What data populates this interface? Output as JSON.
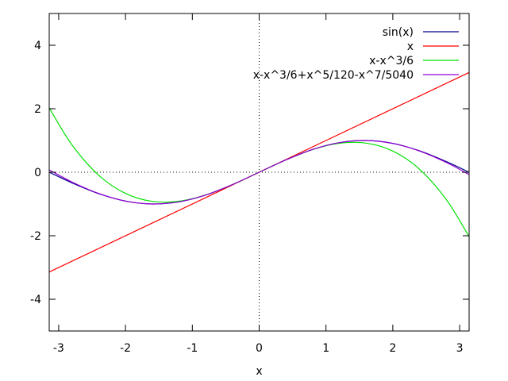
{
  "chart_data": {
    "type": "line",
    "title": "",
    "xlabel": "x",
    "ylabel": "",
    "xlim": [
      -3.14159,
      3.14159
    ],
    "ylim": [
      -5,
      5
    ],
    "xticks": [
      -3,
      -2,
      -1,
      0,
      1,
      2,
      3
    ],
    "yticks": [
      -4,
      -2,
      0,
      2,
      4
    ],
    "xtick_labels": [
      "-3",
      "-2",
      "-1",
      "0",
      "1",
      "2",
      "3"
    ],
    "ytick_labels": [
      "-4",
      "-2",
      "0",
      "2",
      "4"
    ],
    "grid": false,
    "zero_axes": "dotted",
    "legend_position": "top-right",
    "series": [
      {
        "name": "sin(x)",
        "color": "#00008b",
        "x": [
          -3.1416,
          -2.8,
          -2.4,
          -2.0,
          -1.6,
          -1.2,
          -0.8,
          -0.4,
          0.0,
          0.4,
          0.8,
          1.2,
          1.6,
          2.0,
          2.4,
          2.8,
          3.1416
        ],
        "y": [
          0.0,
          -0.335,
          -0.675,
          -0.909,
          -0.9996,
          -0.932,
          -0.717,
          -0.389,
          0.0,
          0.389,
          0.717,
          0.932,
          0.9996,
          0.909,
          0.675,
          0.335,
          0.0
        ]
      },
      {
        "name": "x",
        "color": "#ff0000",
        "x": [
          -3.1416,
          3.1416
        ],
        "y": [
          -3.1416,
          3.1416
        ]
      },
      {
        "name": "x-x^3/6",
        "color": "#00e000",
        "x": [
          -3.1416,
          -2.8,
          -2.4,
          -2.0,
          -1.6,
          -1.2,
          -0.8,
          -0.4,
          0.0,
          0.4,
          0.8,
          1.2,
          1.6,
          2.0,
          2.4,
          2.8,
          3.1416
        ],
        "y": [
          2.026,
          0.859,
          -0.096,
          -0.667,
          -0.917,
          -0.912,
          -0.715,
          -0.389,
          0.0,
          0.389,
          0.715,
          0.912,
          0.917,
          0.667,
          0.096,
          -0.859,
          -2.026
        ]
      },
      {
        "name": "x-x^3/6+x^5/120-x^7/5040",
        "color": "#9400d3",
        "x": [
          -3.1416,
          -2.8,
          -2.4,
          -2.0,
          -1.6,
          -1.2,
          -0.8,
          -0.4,
          0.0,
          0.4,
          0.8,
          1.2,
          1.6,
          2.0,
          2.4,
          2.8,
          3.1416
        ],
        "y": [
          0.075,
          -0.309,
          -0.668,
          -0.907,
          -0.9994,
          -0.932,
          -0.717,
          -0.389,
          0.0,
          0.389,
          0.717,
          0.932,
          0.9994,
          0.907,
          0.668,
          0.309,
          -0.075
        ]
      }
    ]
  }
}
